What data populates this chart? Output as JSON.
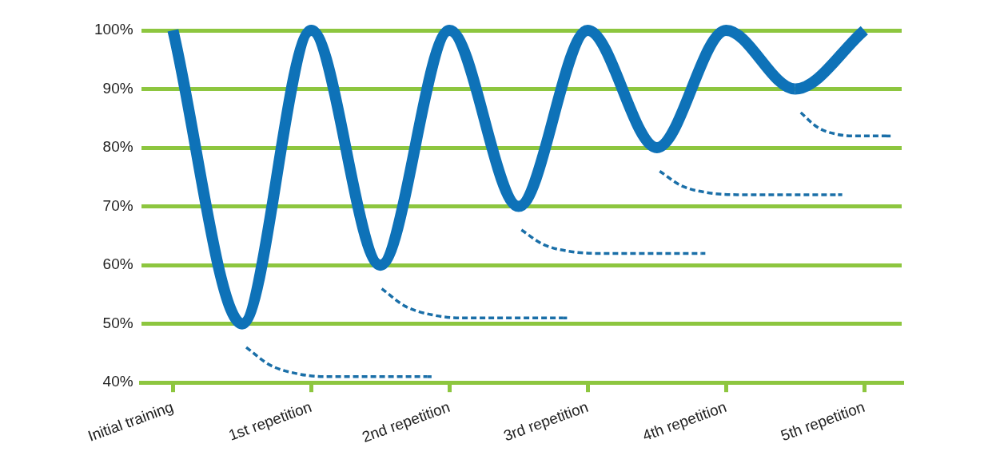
{
  "chart_data": {
    "type": "line",
    "xlim": [
      -0.23,
      5.27
    ],
    "ylim": [
      40,
      100
    ],
    "xticks": [
      {
        "value": 0,
        "label": "Initial training"
      },
      {
        "value": 1,
        "label": "1st repetition"
      },
      {
        "value": 2,
        "label": "2nd repetition"
      },
      {
        "value": 3,
        "label": "3rd repetition"
      },
      {
        "value": 4,
        "label": "4th repetition"
      },
      {
        "value": 5,
        "label": "5th repetition"
      }
    ],
    "yticks": [
      {
        "value": 40,
        "label": "40%"
      },
      {
        "value": 50,
        "label": "50%"
      },
      {
        "value": 60,
        "label": "60%"
      },
      {
        "value": 70,
        "label": "70%"
      },
      {
        "value": 80,
        "label": "80%"
      },
      {
        "value": 90,
        "label": "90%"
      },
      {
        "value": 100,
        "label": "100%"
      }
    ],
    "grid": "y",
    "marker": "none",
    "series": [
      {
        "color": "#0e72b8",
        "line_style": "solid",
        "x": [
          0,
          0.5,
          1,
          1.5,
          2,
          2.5,
          3,
          3.5,
          4,
          4.5,
          5
        ],
        "values": [
          100,
          50,
          100,
          60,
          100,
          70,
          100,
          80,
          100,
          90,
          100
        ]
      },
      {
        "color": "#1a6fa8",
        "line_style": "dashed",
        "x": [
          0.53,
          0.7,
          0.9,
          1.1,
          1.84,
          1.87
        ],
        "values": [
          46,
          43,
          41.5,
          41,
          41,
          41
        ]
      },
      {
        "color": "#1a6fa8",
        "line_style": "dashed",
        "x": [
          1.51,
          1.68,
          1.88,
          2.08,
          2.82,
          2.85
        ],
        "values": [
          56,
          53,
          51.5,
          51,
          51,
          51
        ]
      },
      {
        "color": "#1a6fa8",
        "line_style": "dashed",
        "x": [
          2.52,
          2.68,
          2.88,
          3.08,
          3.82,
          3.85
        ],
        "values": [
          66,
          63.5,
          62.3,
          62,
          62,
          62
        ]
      },
      {
        "color": "#1a6fa8",
        "line_style": "dashed",
        "x": [
          3.52,
          3.68,
          3.88,
          4.08,
          4.81,
          4.84
        ],
        "values": [
          76,
          73.5,
          72.3,
          72,
          72,
          72
        ]
      },
      {
        "color": "#1a6fa8",
        "line_style": "dashed",
        "x": [
          4.54,
          4.66,
          4.8,
          4.95,
          5.16,
          5.19
        ],
        "values": [
          86,
          83.5,
          82.3,
          82,
          82,
          82
        ]
      }
    ]
  }
}
